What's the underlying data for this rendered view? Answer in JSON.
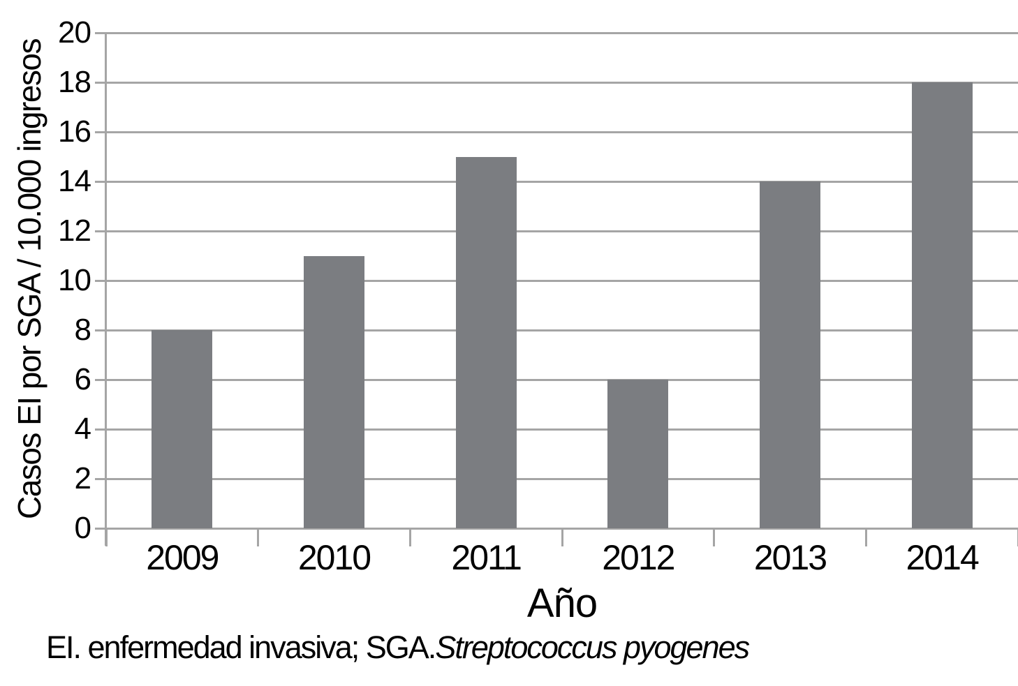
{
  "chart_data": {
    "type": "bar",
    "title": "",
    "categories": [
      "2009",
      "2010",
      "2011",
      "2012",
      "2013",
      "2014"
    ],
    "values": [
      8,
      11,
      15,
      6,
      14,
      18
    ],
    "xlabel": "Año",
    "ylabel": "Casos EI por SGA / 10.000 ingresos",
    "ylim": [
      0,
      20
    ],
    "yticks": [
      0,
      2,
      4,
      6,
      8,
      10,
      12,
      14,
      16,
      18,
      20
    ],
    "grid": true,
    "legend": "none",
    "bar_color": "#7b7d81",
    "grid_color": "#a5a5a5",
    "text_color": "#000000",
    "footnote": {
      "prefix": "EI. enfermedad invasiva; SGA.",
      "italic": "Streptococcus pyogenes"
    }
  }
}
